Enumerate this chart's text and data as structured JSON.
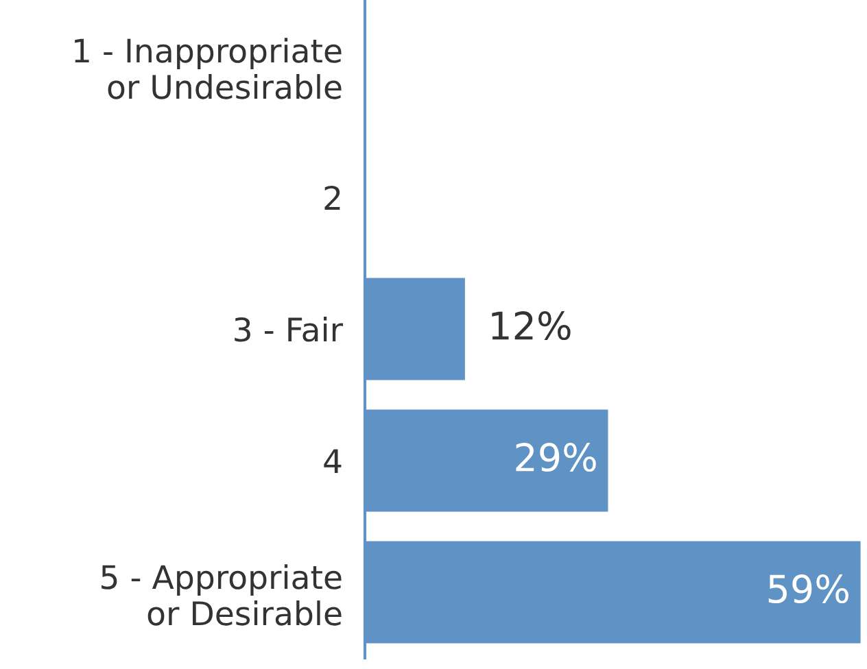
{
  "chart_data": {
    "type": "bar",
    "orientation": "horizontal",
    "categories": [
      "1 - Inappropriate\nor Undesirable",
      "2",
      "3 - Fair",
      "4",
      "5 - Appropriate\nor Desirable"
    ],
    "values": [
      null,
      null,
      12,
      29,
      59
    ],
    "value_labels": [
      null,
      null,
      "12%",
      "29%",
      "59%"
    ],
    "color": "#5f93c6",
    "xlim": [
      0,
      59
    ],
    "tick_labels": "y",
    "grid": false,
    "legend": false
  }
}
